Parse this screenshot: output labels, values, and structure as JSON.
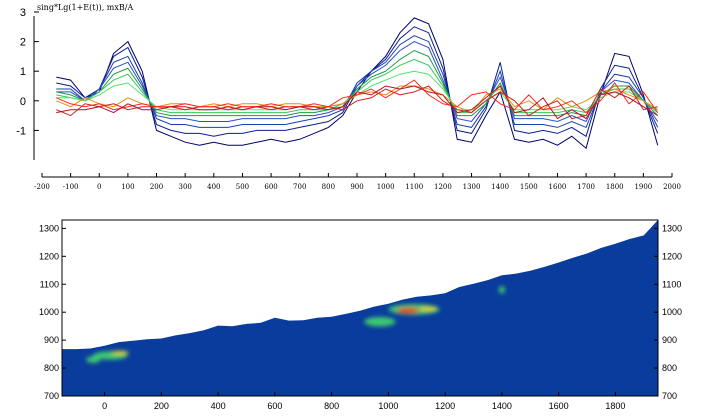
{
  "chart_data": [
    {
      "type": "line",
      "title": "sing*Lg(1+E(t)), mxB/A",
      "xlabel": "",
      "ylabel": "",
      "xlim": [
        -200,
        2000
      ],
      "ylim": [
        -2,
        3
      ],
      "x_ticks": [
        -200,
        -100,
        0,
        100,
        200,
        300,
        400,
        500,
        600,
        700,
        800,
        900,
        1000,
        1100,
        1200,
        1300,
        1400,
        1500,
        1600,
        1700,
        1800,
        1900,
        2000
      ],
      "y_ticks": [
        -1,
        0,
        1,
        2,
        3
      ],
      "grid": false,
      "x": [
        -150,
        -100,
        -50,
        0,
        50,
        100,
        150,
        200,
        250,
        300,
        350,
        400,
        450,
        500,
        550,
        600,
        650,
        700,
        750,
        800,
        850,
        900,
        950,
        1000,
        1050,
        1100,
        1150,
        1200,
        1250,
        1300,
        1350,
        1400,
        1450,
        1500,
        1550,
        1600,
        1650,
        1700,
        1750,
        1800,
        1850,
        1900,
        1950
      ],
      "series": [
        {
          "color": "#00006e",
          "values": [
            0.8,
            0.7,
            0.1,
            0.3,
            1.6,
            2.0,
            1.0,
            -1.0,
            -1.2,
            -1.4,
            -1.5,
            -1.4,
            -1.5,
            -1.5,
            -1.4,
            -1.3,
            -1.4,
            -1.3,
            -1.1,
            -0.9,
            -0.5,
            0.3,
            1.0,
            1.5,
            2.3,
            2.8,
            2.6,
            1.4,
            -1.3,
            -1.4,
            -0.5,
            0.3,
            -1.3,
            -1.4,
            -1.3,
            -1.5,
            -1.2,
            -1.6,
            0.2,
            1.6,
            1.5,
            0.2,
            -1.5
          ]
        },
        {
          "color": "#0a1f8f",
          "values": [
            0.6,
            0.5,
            0.1,
            0.4,
            1.5,
            1.8,
            0.8,
            -0.8,
            -1.0,
            -1.1,
            -1.1,
            -1.2,
            -1.1,
            -1.1,
            -1.0,
            -1.0,
            -1.0,
            -0.9,
            -0.8,
            -0.7,
            -0.4,
            0.5,
            1.0,
            1.4,
            2.1,
            2.5,
            2.3,
            1.1,
            -1.0,
            -1.1,
            -0.3,
            1.3,
            -1.0,
            -1.1,
            -1.0,
            -1.1,
            -0.9,
            -1.2,
            0.4,
            1.2,
            1.1,
            0.1,
            -1.1
          ]
        },
        {
          "color": "#1a3fb0",
          "values": [
            0.4,
            0.4,
            0.0,
            0.4,
            1.3,
            1.5,
            0.6,
            -0.6,
            -0.8,
            -0.8,
            -0.9,
            -0.9,
            -0.9,
            -0.8,
            -0.8,
            -0.8,
            -0.8,
            -0.7,
            -0.6,
            -0.5,
            -0.3,
            0.6,
            1.0,
            1.3,
            1.9,
            2.2,
            2.0,
            0.9,
            -0.8,
            -0.9,
            -0.2,
            1.0,
            -0.8,
            -0.8,
            -0.8,
            -0.9,
            -0.7,
            -0.9,
            0.3,
            0.9,
            0.8,
            0.1,
            -0.9
          ]
        },
        {
          "color": "#2a4fc8",
          "values": [
            0.3,
            0.3,
            0.0,
            0.4,
            1.1,
            1.3,
            0.5,
            -0.5,
            -0.6,
            -0.6,
            -0.7,
            -0.7,
            -0.7,
            -0.6,
            -0.6,
            -0.6,
            -0.6,
            -0.5,
            -0.5,
            -0.4,
            -0.2,
            0.5,
            0.9,
            1.2,
            1.7,
            2.0,
            1.8,
            0.7,
            -0.6,
            -0.7,
            -0.1,
            0.8,
            -0.6,
            -0.6,
            -0.6,
            -0.7,
            -0.5,
            -0.7,
            0.3,
            0.7,
            0.6,
            0.0,
            -0.7
          ]
        },
        {
          "color": "#1e9c3c",
          "values": [
            0.3,
            0.2,
            0.0,
            0.3,
            0.9,
            1.1,
            0.4,
            -0.4,
            -0.5,
            -0.5,
            -0.5,
            -0.5,
            -0.5,
            -0.5,
            -0.5,
            -0.5,
            -0.5,
            -0.4,
            -0.4,
            -0.3,
            -0.2,
            0.4,
            0.8,
            1.0,
            1.4,
            1.7,
            1.5,
            0.6,
            -0.5,
            -0.5,
            -0.1,
            0.6,
            -0.5,
            -0.5,
            -0.5,
            -0.5,
            -0.4,
            -0.5,
            0.2,
            0.5,
            0.5,
            0.0,
            -0.5
          ]
        },
        {
          "color": "#36c85a",
          "values": [
            0.2,
            0.1,
            0.0,
            0.3,
            0.7,
            0.9,
            0.3,
            -0.3,
            -0.4,
            -0.4,
            -0.4,
            -0.4,
            -0.4,
            -0.4,
            -0.4,
            -0.4,
            -0.4,
            -0.3,
            -0.3,
            -0.3,
            -0.1,
            0.3,
            0.7,
            0.9,
            1.2,
            1.4,
            1.2,
            0.5,
            -0.4,
            -0.4,
            0.0,
            0.5,
            -0.4,
            -0.4,
            -0.4,
            -0.4,
            -0.3,
            -0.4,
            0.2,
            0.4,
            0.4,
            0.0,
            -0.4
          ]
        },
        {
          "color": "#55e070",
          "values": [
            0.1,
            0.1,
            0.0,
            0.2,
            0.5,
            0.6,
            0.2,
            -0.2,
            -0.3,
            -0.3,
            -0.3,
            -0.3,
            -0.3,
            -0.3,
            -0.3,
            -0.3,
            -0.3,
            -0.2,
            -0.2,
            -0.2,
            -0.1,
            0.2,
            0.5,
            0.7,
            0.9,
            1.0,
            0.9,
            0.4,
            -0.3,
            -0.3,
            0.0,
            0.3,
            -0.3,
            -0.3,
            -0.3,
            -0.3,
            -0.2,
            -0.3,
            0.1,
            0.3,
            0.3,
            0.0,
            -0.3
          ]
        },
        {
          "color": "#e09010",
          "values": [
            0.0,
            -0.2,
            0.1,
            -0.1,
            -0.2,
            0.1,
            -0.1,
            -0.2,
            -0.1,
            -0.1,
            -0.2,
            -0.1,
            -0.2,
            -0.1,
            -0.1,
            -0.2,
            -0.1,
            -0.1,
            -0.2,
            -0.2,
            -0.1,
            0.2,
            0.3,
            0.2,
            0.5,
            0.5,
            0.4,
            0.2,
            -0.2,
            -0.4,
            0.2,
            0.4,
            -0.2,
            0.0,
            -0.3,
            0.1,
            -0.2,
            0.0,
            0.3,
            0.4,
            0.2,
            0.0,
            -0.3
          ]
        },
        {
          "color": "#d02020",
          "values": [
            -0.3,
            -0.5,
            -0.1,
            -0.2,
            -0.1,
            -0.3,
            -0.2,
            -0.2,
            -0.2,
            -0.3,
            -0.2,
            -0.2,
            -0.3,
            -0.2,
            -0.2,
            -0.3,
            -0.2,
            -0.2,
            -0.3,
            -0.2,
            -0.3,
            0.0,
            0.1,
            0.4,
            0.2,
            0.3,
            0.5,
            0.0,
            -0.3,
            -0.4,
            0.0,
            0.3,
            0.0,
            -0.5,
            -0.2,
            0.0,
            -0.6,
            -0.5,
            0.4,
            0.1,
            0.5,
            -0.3,
            -0.2
          ]
        },
        {
          "color": "#ff2a1a",
          "values": [
            0.1,
            -0.1,
            -0.2,
            -0.1,
            -0.3,
            -0.2,
            -0.1,
            -0.2,
            -0.2,
            -0.1,
            -0.2,
            -0.2,
            -0.1,
            -0.2,
            -0.2,
            -0.1,
            -0.2,
            -0.2,
            -0.1,
            -0.2,
            0.1,
            0.2,
            0.4,
            0.1,
            0.4,
            0.7,
            0.2,
            -0.1,
            -0.2,
            0.2,
            0.3,
            -0.1,
            -0.3,
            0.2,
            -0.3,
            -0.2,
            0.0,
            -0.4,
            0.0,
            0.6,
            -0.1,
            0.3,
            -0.4
          ]
        },
        {
          "color": "#b8102a",
          "values": [
            -0.4,
            -0.3,
            -0.3,
            -0.2,
            -0.4,
            -0.1,
            -0.3,
            -0.3,
            -0.2,
            -0.2,
            -0.3,
            -0.3,
            -0.2,
            -0.3,
            -0.2,
            -0.2,
            -0.3,
            -0.2,
            -0.2,
            -0.3,
            -0.2,
            0.3,
            0.2,
            0.5,
            0.4,
            0.5,
            0.3,
            0.2,
            -0.4,
            -0.3,
            0.1,
            0.5,
            -0.4,
            -0.3,
            0.1,
            -0.6,
            -0.3,
            -0.6,
            0.2,
            0.3,
            0.1,
            -0.2,
            -0.5
          ]
        }
      ]
    },
    {
      "type": "heatmap",
      "title": "",
      "xlabel": "",
      "ylabel": "",
      "xlim": [
        -150,
        1950
      ],
      "ylim": [
        700,
        1330
      ],
      "x_ticks": [
        0,
        200,
        400,
        600,
        800,
        1000,
        1200,
        1400,
        1600,
        1800
      ],
      "y_ticks": [
        700,
        800,
        900,
        1000,
        1100,
        1200,
        1300
      ],
      "grid": false,
      "background_color": "#093c9c",
      "surface_x": [
        -150,
        -100,
        -50,
        0,
        50,
        100,
        150,
        200,
        250,
        300,
        350,
        400,
        450,
        500,
        550,
        600,
        650,
        700,
        750,
        800,
        850,
        900,
        950,
        1000,
        1050,
        1100,
        1150,
        1200,
        1250,
        1300,
        1350,
        1400,
        1450,
        1500,
        1550,
        1600,
        1650,
        1700,
        1750,
        1800,
        1850,
        1900,
        1950
      ],
      "surface_elevation": [
        868,
        868,
        870,
        880,
        893,
        898,
        903,
        906,
        917,
        925,
        935,
        952,
        950,
        958,
        962,
        980,
        970,
        971,
        980,
        984,
        994,
        1005,
        1020,
        1030,
        1045,
        1055,
        1060,
        1068,
        1090,
        1102,
        1115,
        1132,
        1138,
        1148,
        1162,
        1178,
        1195,
        1210,
        1230,
        1245,
        1262,
        1275,
        1330
      ],
      "anomalies": [
        {
          "x": 20,
          "y": 845,
          "w": 120,
          "h": 30,
          "level": 0.45
        },
        {
          "x": 55,
          "y": 855,
          "w": 60,
          "h": 14,
          "level": 0.75
        },
        {
          "x": -40,
          "y": 830,
          "w": 50,
          "h": 24,
          "level": 0.4
        },
        {
          "x": 970,
          "y": 966,
          "w": 110,
          "h": 34,
          "level": 0.4
        },
        {
          "x": 1090,
          "y": 1010,
          "w": 180,
          "h": 38,
          "level": 0.45
        },
        {
          "x": 1070,
          "y": 1006,
          "w": 80,
          "h": 22,
          "level": 0.95
        },
        {
          "x": 1140,
          "y": 1012,
          "w": 60,
          "h": 16,
          "level": 0.75
        },
        {
          "x": 1400,
          "y": 1080,
          "w": 22,
          "h": 26,
          "level": 0.4
        }
      ]
    }
  ]
}
